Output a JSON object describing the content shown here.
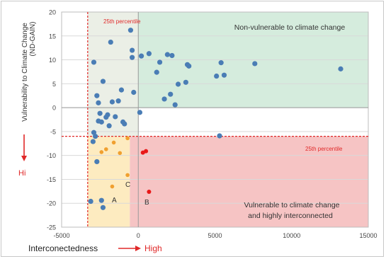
{
  "chart_data": {
    "type": "scatter",
    "ylabel_line1": "Vulnerability to Climate Change",
    "ylabel_line2": "(ND-GAIN)",
    "xlim": [
      -5000,
      15000
    ],
    "ylim": [
      -25,
      20
    ],
    "x_ticks": [
      "-5000",
      "0",
      "5000",
      "10000",
      "15000"
    ],
    "y_ticks": [
      "20",
      "15",
      "10",
      "5",
      "0",
      "-5",
      "-10",
      "-15",
      "-20",
      "-25"
    ],
    "x_tick_values": [
      -5000,
      0,
      5000,
      10000,
      15000
    ],
    "y_tick_values": [
      20,
      15,
      10,
      5,
      0,
      -5,
      -10,
      -15,
      -20,
      -25
    ],
    "reference_lines": {
      "x_25th_percentile": -3300,
      "y_25th_percentile": -6,
      "x_zero": 0,
      "y_zero": 0,
      "orange_region_right": -550
    },
    "regions": {
      "green_label": "Non-vulnerable to climate change",
      "red_label_line1": "Vulnerable to climate change",
      "red_label_line2": "and highly interconnected"
    },
    "annotations": {
      "top_percentile": "25th percentile",
      "right_percentile": "25th percentile",
      "point_a": "A",
      "point_b": "B",
      "point_c": "C"
    },
    "axis_labels": {
      "x_text": "Interconectedness",
      "x_high": "High",
      "y_hi": "Hi"
    },
    "colors": {
      "blue": "#4a7db5",
      "orange": "#f0a030",
      "red": "#e81818",
      "green_fill": "#d5ecdd",
      "red_fill": "#f6c4c4",
      "orange_fill": "#fdebc0",
      "grey_fill": "#ebefe6",
      "guide": "#e02828"
    },
    "series": [
      {
        "color": "blue",
        "points": [
          [
            -2900,
            9.5
          ],
          [
            -2700,
            2.5
          ],
          [
            -2600,
            1.0
          ],
          [
            -2500,
            -1.2
          ],
          [
            -2600,
            -2.8
          ],
          [
            -2400,
            -3.0
          ],
          [
            -2300,
            5.5
          ],
          [
            -2100,
            -2.0
          ],
          [
            -2000,
            -1.5
          ],
          [
            -1800,
            13.7
          ],
          [
            -1900,
            -3.8
          ],
          [
            -1700,
            1.2
          ],
          [
            -1500,
            -1.9
          ],
          [
            -1300,
            1.4
          ],
          [
            -1100,
            3.7
          ],
          [
            -1000,
            -3.0
          ],
          [
            -900,
            -3.4
          ],
          [
            -500,
            16.2
          ],
          [
            -400,
            12.0
          ],
          [
            -400,
            10.5
          ],
          [
            -300,
            3.2
          ],
          [
            100,
            -1.0
          ],
          [
            200,
            10.8
          ],
          [
            700,
            11.3
          ],
          [
            1200,
            7.4
          ],
          [
            1400,
            9.5
          ],
          [
            1700,
            1.8
          ],
          [
            1900,
            11.1
          ],
          [
            2100,
            2.8
          ],
          [
            2200,
            10.9
          ],
          [
            2400,
            0.6
          ],
          [
            2600,
            4.9
          ],
          [
            3100,
            5.3
          ],
          [
            3200,
            9.0
          ],
          [
            3300,
            8.7
          ],
          [
            5100,
            6.6
          ],
          [
            5400,
            9.4
          ],
          [
            5600,
            6.8
          ],
          [
            7600,
            9.2
          ],
          [
            13200,
            8.1
          ],
          [
            5300,
            -5.9
          ],
          [
            -2900,
            -5.2
          ],
          [
            -2800,
            -6.0
          ],
          [
            -2700,
            -11.3
          ],
          [
            -2400,
            -19.4
          ],
          [
            -2300,
            -20.9
          ],
          [
            -3100,
            -19.6
          ],
          [
            -2950,
            -7.1
          ]
        ]
      },
      {
        "color": "orange",
        "points": [
          [
            -2400,
            -9.3
          ],
          [
            -2100,
            -8.7
          ],
          [
            -1600,
            -7.3
          ],
          [
            -1700,
            -16.5
          ],
          [
            -1200,
            -9.5
          ],
          [
            -700,
            -6.4
          ],
          [
            -700,
            -14.1
          ]
        ]
      },
      {
        "color": "red",
        "points": [
          [
            300,
            -9.4
          ],
          [
            500,
            -9.1
          ],
          [
            700,
            -17.6
          ]
        ]
      }
    ]
  }
}
